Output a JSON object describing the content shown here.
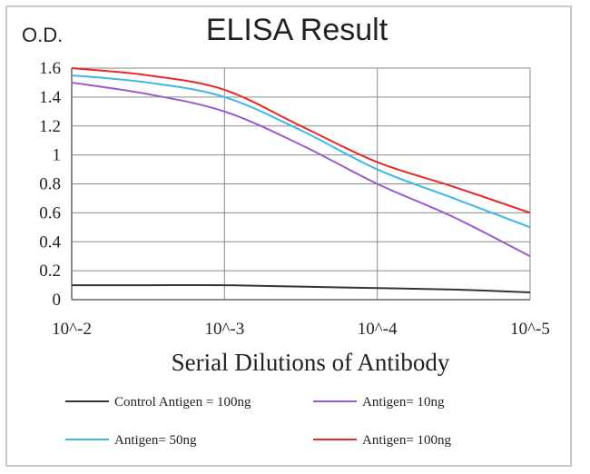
{
  "chart_data": {
    "type": "line",
    "title": "ELISA Result",
    "ylabel": "O.D.",
    "xlabel": "Serial Dilutions  of Antibody",
    "categories": [
      "10^-2",
      "10^-3",
      "10^-4",
      "10^-5"
    ],
    "ylim": [
      0,
      1.6
    ],
    "yticks": [
      "1.6",
      "1.4",
      "1.2",
      "1",
      "0.8",
      "0.6",
      "0.4",
      "0.2",
      "0"
    ],
    "ytick_values": [
      1.6,
      1.4,
      1.2,
      1.0,
      0.8,
      0.6,
      0.4,
      0.2,
      0.0
    ],
    "grid": true,
    "legend_position": "bottom",
    "series": [
      {
        "name": "Control Antigen = 100ng",
        "color": "#333333",
        "x": [
          0,
          0.5,
          1,
          1.5,
          2,
          2.5,
          3
        ],
        "values": [
          0.1,
          0.1,
          0.1,
          0.09,
          0.08,
          0.07,
          0.05
        ]
      },
      {
        "name": "Antigen= 10ng",
        "color": "#9b59d0",
        "x": [
          0,
          0.5,
          1,
          1.5,
          2,
          2.5,
          3
        ],
        "values": [
          1.5,
          1.42,
          1.3,
          1.07,
          0.8,
          0.57,
          0.3
        ]
      },
      {
        "name": "Antigen= 50ng",
        "color": "#3fb6e8",
        "x": [
          0,
          0.5,
          1,
          1.5,
          2,
          2.5,
          3
        ],
        "values": [
          1.55,
          1.5,
          1.4,
          1.17,
          0.9,
          0.7,
          0.5
        ]
      },
      {
        "name": "Antigen= 100ng",
        "color": "#e8282a",
        "x": [
          0,
          0.5,
          1,
          1.5,
          2,
          2.5,
          3
        ],
        "values": [
          1.6,
          1.55,
          1.45,
          1.2,
          0.95,
          0.78,
          0.6
        ]
      }
    ]
  }
}
